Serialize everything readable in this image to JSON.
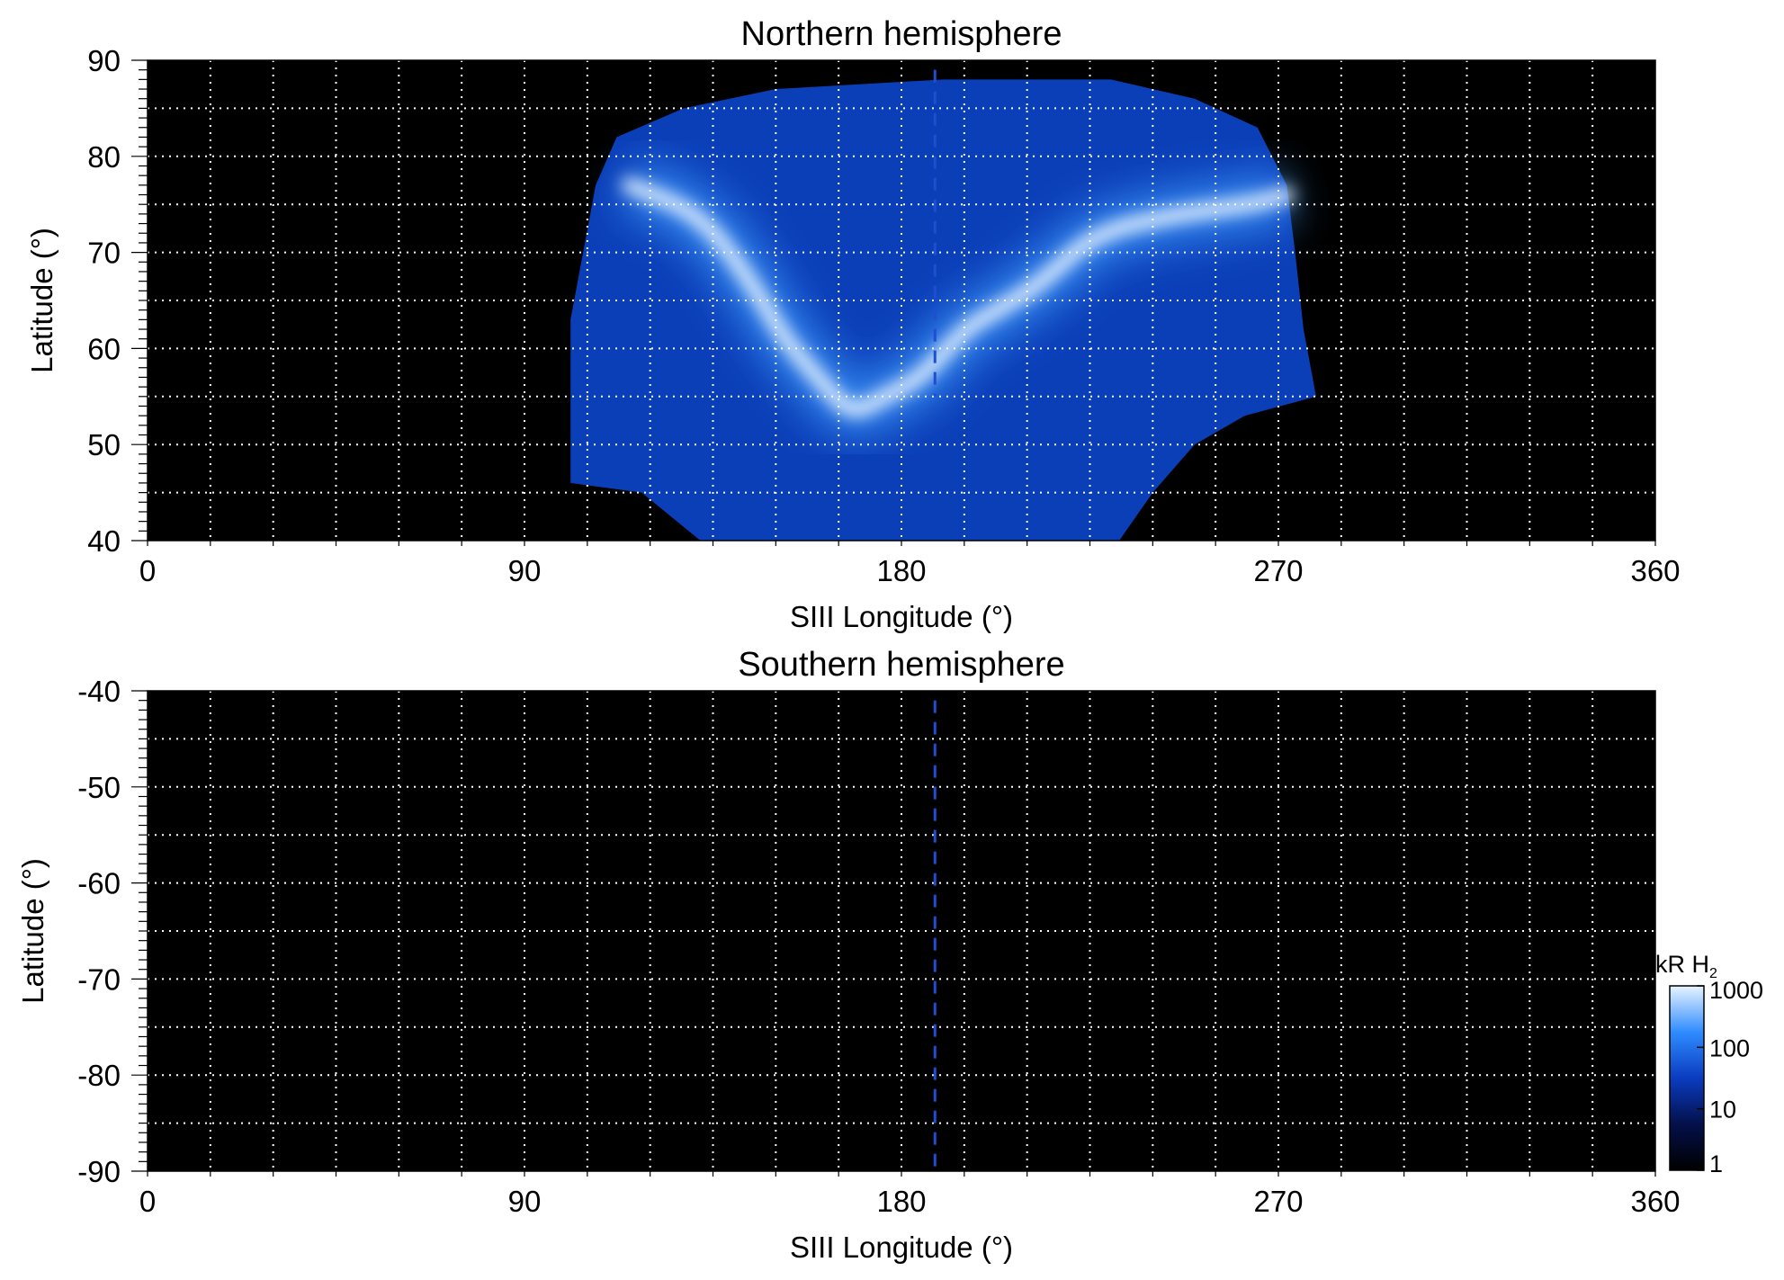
{
  "chart_data": [
    {
      "type": "heatmap",
      "title": "Northern hemisphere",
      "xlabel": "SIII Longitude (°)",
      "ylabel": "Latitude (°)",
      "xlim": [
        0,
        360
      ],
      "ylim": [
        40,
        90
      ],
      "xticks": [
        0,
        90,
        180,
        270,
        360
      ],
      "yticks": [
        40,
        50,
        60,
        70,
        80,
        90
      ],
      "grid": true,
      "background_color": "#000000",
      "coverage_boundary": [
        [
          101,
          46
        ],
        [
          101,
          63
        ],
        [
          104,
          70
        ],
        [
          107,
          77
        ],
        [
          112,
          82
        ],
        [
          128,
          85
        ],
        [
          150,
          87
        ],
        [
          190,
          88
        ],
        [
          230,
          88
        ],
        [
          250,
          86
        ],
        [
          265,
          83
        ],
        [
          272,
          77
        ],
        [
          274,
          70
        ],
        [
          276,
          62
        ],
        [
          279,
          55
        ],
        [
          262,
          53
        ],
        [
          250,
          50
        ],
        [
          240,
          45
        ],
        [
          232,
          40
        ],
        [
          132,
          40
        ],
        [
          118,
          45
        ],
        [
          101,
          46
        ]
      ],
      "auroral_oval": [
        [
          115,
          77
        ],
        [
          132,
          74
        ],
        [
          144,
          67
        ],
        [
          152,
          61
        ],
        [
          160,
          57
        ],
        [
          168,
          53
        ],
        [
          176,
          55
        ],
        [
          185,
          57
        ],
        [
          195,
          62
        ],
        [
          203,
          64
        ],
        [
          214,
          67
        ],
        [
          226,
          72
        ],
        [
          246,
          74
        ],
        [
          264,
          75
        ],
        [
          272,
          76
        ]
      ],
      "reference_line": {
        "longitude": 188,
        "lat_range": [
          55,
          89
        ],
        "color": "#1f4fd0",
        "style": "dashed"
      }
    },
    {
      "type": "heatmap",
      "title": "Southern hemisphere",
      "xlabel": "SIII Longitude (°)",
      "ylabel": "Latitude (°)",
      "xlim": [
        0,
        360
      ],
      "ylim": [
        -90,
        -40
      ],
      "xticks": [
        0,
        90,
        180,
        270,
        360
      ],
      "yticks": [
        -90,
        -80,
        -70,
        -60,
        -50,
        -40
      ],
      "grid": true,
      "background_color": "#000000",
      "reference_line": {
        "longitude": 188,
        "lat_range": [
          -90,
          -41
        ],
        "color": "#1f4fd0",
        "style": "dashed"
      }
    }
  ],
  "colorbar": {
    "label": "kR H",
    "label_subscript": "2",
    "scale": "log",
    "range": [
      1,
      1000
    ],
    "ticks": [
      1,
      10,
      100,
      1000
    ],
    "colors": [
      "#000000",
      "#04104a",
      "#0a3cc0",
      "#2f8cff",
      "#e8f4ff"
    ]
  }
}
